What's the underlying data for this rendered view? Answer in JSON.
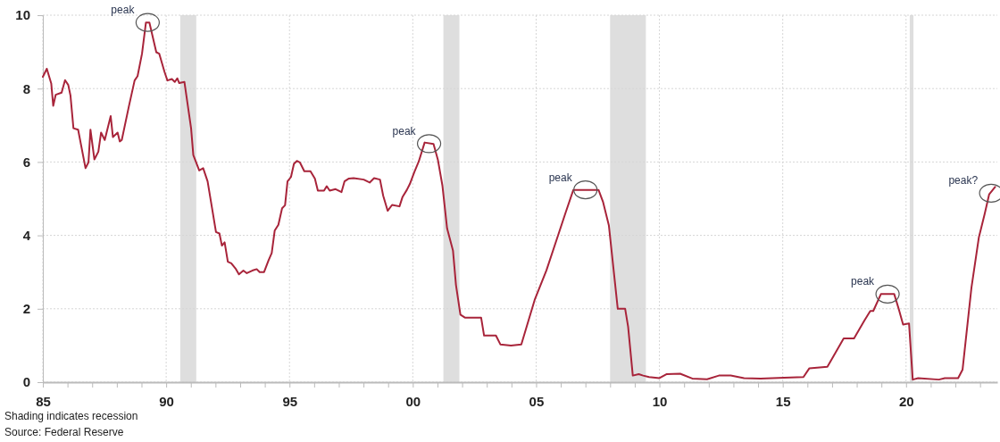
{
  "chart_data": {
    "type": "line",
    "x": [
      1985.0,
      1985.16,
      1985.34,
      1985.42,
      1985.52,
      1985.76,
      1985.9,
      1986.03,
      1986.12,
      1986.24,
      1986.43,
      1986.73,
      1986.85,
      1986.93,
      1987.09,
      1987.25,
      1987.36,
      1987.51,
      1987.75,
      1987.84,
      1988.03,
      1988.12,
      1988.2,
      1988.48,
      1988.72,
      1988.84,
      1989.02,
      1989.18,
      1989.32,
      1989.6,
      1989.72,
      1989.93,
      1990.05,
      1990.23,
      1990.35,
      1990.45,
      1990.53,
      1990.74,
      1991.01,
      1991.1,
      1991.26,
      1991.34,
      1991.5,
      1991.68,
      1991.86,
      1992.02,
      1992.16,
      1992.26,
      1992.37,
      1992.5,
      1992.64,
      1992.83,
      1992.95,
      1993.13,
      1993.27,
      1993.49,
      1993.67,
      1993.79,
      1993.97,
      1994.15,
      1994.28,
      1994.4,
      1994.55,
      1994.7,
      1994.82,
      1994.92,
      1995.06,
      1995.18,
      1995.3,
      1995.42,
      1995.6,
      1995.85,
      1996.03,
      1996.15,
      1996.4,
      1996.51,
      1996.63,
      1996.87,
      1997.11,
      1997.23,
      1997.41,
      1997.6,
      1998.01,
      1998.25,
      1998.43,
      1998.67,
      1998.8,
      1998.98,
      1999.16,
      1999.46,
      1999.58,
      1999.76,
      1999.88,
      2000.06,
      2000.24,
      2000.48,
      2000.84,
      2001.02,
      2001.2,
      2001.39,
      2001.63,
      2001.75,
      2001.93,
      2002.11,
      2002.77,
      2002.89,
      2003.37,
      2003.55,
      2003.98,
      2004.4,
      2004.94,
      2005.42,
      2005.9,
      2006.2,
      2006.51,
      2007.53,
      2007.71,
      2007.95,
      2008.31,
      2008.61,
      2008.73,
      2008.92,
      2009.16,
      2009.34,
      2009.58,
      2010.0,
      2010.3,
      2010.84,
      2011.33,
      2011.93,
      2012.41,
      2012.89,
      2013.43,
      2014.1,
      2015.06,
      2015.84,
      2016.08,
      2016.81,
      2017.05,
      2017.47,
      2017.89,
      2018.31,
      2018.55,
      2018.67,
      2018.98,
      2019.52,
      2019.7,
      2019.88,
      2020.12,
      2020.27,
      2020.49,
      2021.33,
      2021.57,
      2022.11,
      2022.29,
      2022.65,
      2022.95,
      2023.19,
      2023.37,
      2023.61
    ],
    "series": [
      {
        "color": "#a8243a",
        "values": [
          8.32,
          8.54,
          8.14,
          7.53,
          7.83,
          7.89,
          8.23,
          8.1,
          7.81,
          6.92,
          6.88,
          5.83,
          5.99,
          6.88,
          6.07,
          6.28,
          6.8,
          6.6,
          7.25,
          6.68,
          6.8,
          6.56,
          6.6,
          7.49,
          8.22,
          8.34,
          8.95,
          9.8,
          9.8,
          8.99,
          8.95,
          8.46,
          8.22,
          8.26,
          8.18,
          8.28,
          8.15,
          8.18,
          6.92,
          6.19,
          5.91,
          5.77,
          5.83,
          5.47,
          4.74,
          4.09,
          4.05,
          3.72,
          3.81,
          3.28,
          3.24,
          3.08,
          2.94,
          3.04,
          2.97,
          3.04,
          3.08,
          3.0,
          3.0,
          3.32,
          3.52,
          4.13,
          4.29,
          4.74,
          4.82,
          5.47,
          5.59,
          5.95,
          6.03,
          5.99,
          5.75,
          5.75,
          5.55,
          5.22,
          5.22,
          5.34,
          5.22,
          5.26,
          5.18,
          5.47,
          5.55,
          5.56,
          5.52,
          5.44,
          5.56,
          5.52,
          5.08,
          4.67,
          4.83,
          4.79,
          5.04,
          5.24,
          5.4,
          5.72,
          6.01,
          6.53,
          6.49,
          6.05,
          5.36,
          4.19,
          3.58,
          2.65,
          1.84,
          1.76,
          1.76,
          1.27,
          1.27,
          1.03,
          1.0,
          1.03,
          2.24,
          3.05,
          4.02,
          4.63,
          5.24,
          5.24,
          4.92,
          4.27,
          2.0,
          2.0,
          1.51,
          0.18,
          0.22,
          0.18,
          0.14,
          0.11,
          0.22,
          0.23,
          0.1,
          0.08,
          0.18,
          0.18,
          0.11,
          0.1,
          0.12,
          0.14,
          0.38,
          0.42,
          0.7,
          1.19,
          1.19,
          1.68,
          1.94,
          1.94,
          2.4,
          2.4,
          2.0,
          1.57,
          1.6,
          0.07,
          0.11,
          0.07,
          0.11,
          0.11,
          0.34,
          2.57,
          3.94,
          4.59,
          5.12,
          5.32
        ]
      }
    ],
    "xlim": [
      1985,
      2023.7
    ],
    "xticks": [
      {
        "value": 1985,
        "label": "85"
      },
      {
        "value": 1986,
        "label": null
      },
      {
        "value": 1987,
        "label": null
      },
      {
        "value": 1988,
        "label": null
      },
      {
        "value": 1989,
        "label": null
      },
      {
        "value": 1990,
        "label": "90"
      },
      {
        "value": 1991,
        "label": null
      },
      {
        "value": 1992,
        "label": null
      },
      {
        "value": 1993,
        "label": null
      },
      {
        "value": 1994,
        "label": null
      },
      {
        "value": 1995,
        "label": "95"
      },
      {
        "value": 1996,
        "label": null
      },
      {
        "value": 1997,
        "label": null
      },
      {
        "value": 1998,
        "label": null
      },
      {
        "value": 1999,
        "label": null
      },
      {
        "value": 2000,
        "label": "00"
      },
      {
        "value": 2001,
        "label": null
      },
      {
        "value": 2002,
        "label": null
      },
      {
        "value": 2003,
        "label": null
      },
      {
        "value": 2004,
        "label": null
      },
      {
        "value": 2005,
        "label": "05"
      },
      {
        "value": 2006,
        "label": null
      },
      {
        "value": 2007,
        "label": null
      },
      {
        "value": 2008,
        "label": null
      },
      {
        "value": 2009,
        "label": null
      },
      {
        "value": 2010,
        "label": "10"
      },
      {
        "value": 2011,
        "label": null
      },
      {
        "value": 2012,
        "label": null
      },
      {
        "value": 2013,
        "label": null
      },
      {
        "value": 2014,
        "label": null
      },
      {
        "value": 2015,
        "label": "15"
      },
      {
        "value": 2016,
        "label": null
      },
      {
        "value": 2017,
        "label": null
      },
      {
        "value": 2018,
        "label": null
      },
      {
        "value": 2019,
        "label": null
      },
      {
        "value": 2020,
        "label": "20"
      },
      {
        "value": 2021,
        "label": null
      },
      {
        "value": 2022,
        "label": null
      },
      {
        "value": 2023,
        "label": null
      }
    ],
    "ylim": [
      0,
      10
    ],
    "yticks": [
      0,
      2,
      4,
      6,
      8,
      10
    ],
    "grid": true,
    "line_style": "solid",
    "bands": [
      {
        "axis": "x",
        "from": 1990.57,
        "to": 1991.22,
        "color": "#dedede"
      },
      {
        "axis": "x",
        "from": 2001.24,
        "to": 2001.89,
        "color": "#dedede"
      },
      {
        "axis": "x",
        "from": 2008.0,
        "to": 2009.45,
        "color": "#dedede"
      },
      {
        "axis": "x",
        "from": 2020.15,
        "to": 2020.3,
        "color": "#dedede"
      }
    ],
    "annotations": [
      {
        "text": "peak",
        "x": 1989.25,
        "y": 9.8
      },
      {
        "text": "peak",
        "x": 2000.66,
        "y": 6.5
      },
      {
        "text": "peak",
        "x": 2007.0,
        "y": 5.24
      },
      {
        "text": "peak",
        "x": 2019.25,
        "y": 2.4
      },
      {
        "text": "peak?",
        "x": 2023.45,
        "y": 5.15
      },
      "Shading indicates recession",
      "Source: Federal Reserve"
    ]
  }
}
